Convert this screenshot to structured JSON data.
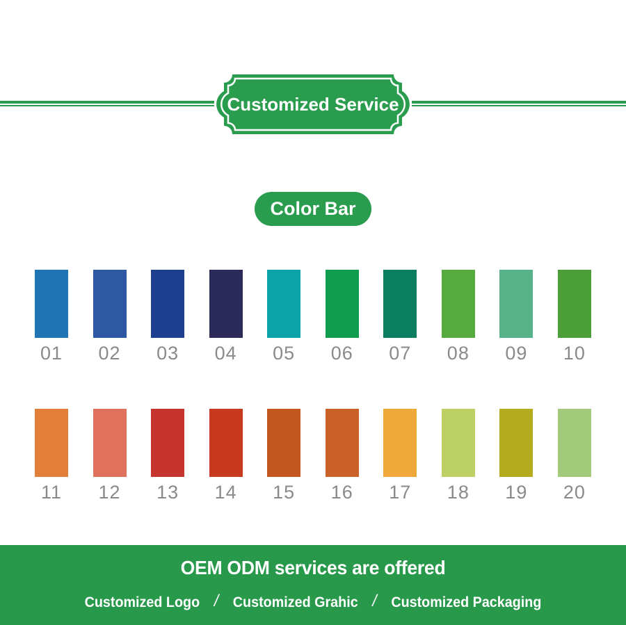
{
  "header": {
    "ribbon_label": "Customized Service"
  },
  "section": {
    "title": "Color Bar"
  },
  "colors": {
    "accent_green": "#2a9c4d",
    "footer_green": "#28994b",
    "number_gray": "#8a8a8a",
    "text_white": "#ffffff"
  },
  "swatches": [
    {
      "number": "01",
      "color": "#2174b4"
    },
    {
      "number": "02",
      "color": "#2e59a2"
    },
    {
      "number": "03",
      "color": "#1e3e8e"
    },
    {
      "number": "04",
      "color": "#2c2a58"
    },
    {
      "number": "05",
      "color": "#0ba3a8"
    },
    {
      "number": "06",
      "color": "#0f9c4d"
    },
    {
      "number": "07",
      "color": "#0c7e60"
    },
    {
      "number": "08",
      "color": "#57aa3d"
    },
    {
      "number": "09",
      "color": "#57b28a"
    },
    {
      "number": "10",
      "color": "#4c9f38"
    },
    {
      "number": "11",
      "color": "#e17e3a"
    },
    {
      "number": "12",
      "color": "#e0715d"
    },
    {
      "number": "13",
      "color": "#c5342f"
    },
    {
      "number": "14",
      "color": "#c83a20"
    },
    {
      "number": "15",
      "color": "#c25720"
    },
    {
      "number": "16",
      "color": "#ca6128"
    },
    {
      "number": "17",
      "color": "#efa93a"
    },
    {
      "number": "18",
      "color": "#bdd066"
    },
    {
      "number": "19",
      "color": "#b4ab1f"
    },
    {
      "number": "20",
      "color": "#a3ca7a"
    }
  ],
  "footer": {
    "title": "OEM ODM services are offered",
    "separator": "/",
    "items": [
      "Customized Logo",
      "Customized Grahic",
      "Customized Packaging"
    ]
  }
}
